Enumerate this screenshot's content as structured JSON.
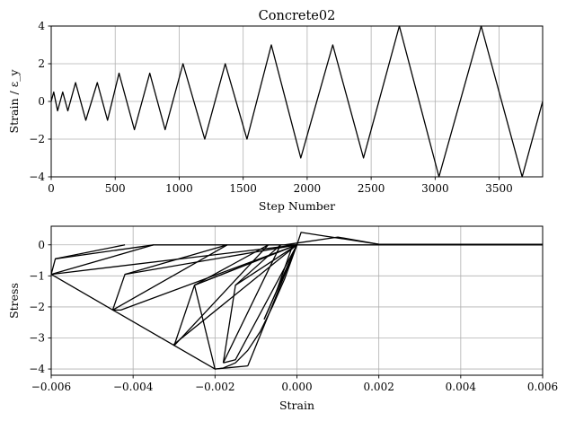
{
  "chart_data": [
    {
      "type": "line",
      "title": "Concrete02",
      "xlabel": "Step Number",
      "ylabel": "Strain / ε_y",
      "xlim": [
        0,
        3840
      ],
      "ylim": [
        -4,
        4
      ],
      "grid": true,
      "xticks": [
        0,
        500,
        1000,
        1500,
        2000,
        2500,
        3000,
        3500
      ],
      "yticks": [
        -4,
        -2,
        0,
        2,
        4
      ],
      "series": [
        {
          "x": [
            0,
            20,
            50,
            90,
            130,
            190,
            270,
            360,
            440,
            530,
            650,
            770,
            890,
            1030,
            1200,
            1360,
            1530,
            1720,
            1950,
            2200,
            2440,
            2720,
            3030,
            3360,
            3680,
            3840
          ],
          "y": [
            0,
            0.5,
            -0.5,
            0.5,
            -0.5,
            1.0,
            -1.0,
            1.0,
            -1.0,
            1.5,
            -1.5,
            1.5,
            -1.5,
            2.0,
            -2.0,
            2.0,
            -2.0,
            3.0,
            -3.0,
            3.0,
            -3.0,
            4.0,
            -4.0,
            4.0,
            -4.0,
            0
          ]
        }
      ]
    },
    {
      "type": "line",
      "title": "",
      "xlabel": "Strain",
      "ylabel": "Stress",
      "xlim": [
        -0.006,
        0.006
      ],
      "ylim": [
        -4.2,
        0.6
      ],
      "grid": true,
      "xticks": [
        -0.006,
        -0.004,
        -0.002,
        0.0,
        0.002,
        0.004,
        0.006
      ],
      "xticklabels": [
        "−0.006",
        "−0.004",
        "−0.002",
        "0.000",
        "0.002",
        "0.004",
        "0.006"
      ],
      "yticks": [
        -4,
        -3,
        -2,
        -1,
        0
      ],
      "envelope": {
        "x": [
          0,
          -0.0003,
          -0.0006,
          -0.0009,
          -0.0012,
          -0.0015,
          -0.0018,
          -0.002
        ],
        "y": [
          0,
          -1.1,
          -2.0,
          -2.8,
          -3.4,
          -3.8,
          -3.97,
          -4.0
        ]
      },
      "descending_branch": {
        "x": [
          -0.002,
          -0.006
        ],
        "y": [
          -4.0,
          -0.95
        ]
      },
      "tension_branch": {
        "x": [
          0,
          0.0001,
          0.0007,
          0.0015,
          0.002,
          0.006
        ],
        "y": [
          0,
          0.4,
          0.28,
          0.12,
          0.02,
          0.02
        ]
      },
      "cycles": [
        {
          "path": [
            [
              0.0,
              0.0
            ],
            [
              -0.00025,
              -0.75
            ],
            [
              -0.0004,
              -1.2
            ]
          ]
        },
        {
          "path": [
            [
              -0.0004,
              -1.2
            ],
            [
              0.0,
              0.0
            ]
          ]
        },
        {
          "path": [
            [
              0.0,
              0.0
            ],
            [
              -0.0006,
              -1.8
            ],
            [
              -0.0008,
              -2.4
            ]
          ]
        },
        {
          "path": [
            [
              -0.0008,
              -2.4
            ],
            [
              -0.0005,
              -1.5
            ],
            [
              0.0,
              0.0
            ]
          ]
        },
        {
          "path": [
            [
              0.0,
              0.0
            ],
            [
              -0.0015,
              -3.7
            ],
            [
              -0.0018,
              -3.8
            ]
          ]
        },
        {
          "path": [
            [
              -0.0018,
              -3.8
            ],
            [
              -0.0015,
              -1.3
            ],
            [
              0.0,
              0.0
            ],
            [
              -0.0012,
              -3.9
            ]
          ]
        },
        {
          "path": [
            [
              -0.0012,
              -3.9
            ],
            [
              -0.002,
              -4.0
            ],
            [
              -0.0025,
              -1.3
            ],
            [
              0.0,
              0.0
            ]
          ]
        },
        {
          "path": [
            [
              0.0,
              0.0
            ],
            [
              -0.003,
              -3.2
            ],
            [
              -0.003,
              -3.25
            ]
          ]
        },
        {
          "path": [
            [
              -0.003,
              -3.25
            ],
            [
              -0.0025,
              -1.3
            ],
            [
              0.0,
              0.0
            ]
          ]
        },
        {
          "path": [
            [
              0.0,
              0.0
            ],
            [
              -0.0043,
              -2.1
            ],
            [
              -0.0045,
              -2.1
            ]
          ]
        },
        {
          "path": [
            [
              -0.0045,
              -2.1
            ],
            [
              -0.0042,
              -0.95
            ],
            [
              0.0,
              0.0
            ]
          ]
        },
        {
          "path": [
            [
              0.0,
              0.0
            ],
            [
              -0.006,
              -0.95
            ]
          ]
        },
        {
          "path": [
            [
              -0.006,
              -0.95
            ],
            [
              -0.0059,
              -0.45
            ],
            [
              -0.0035,
              0.0
            ]
          ]
        },
        {
          "path": [
            [
              -0.0035,
              0.0
            ],
            [
              -0.006,
              -0.95
            ]
          ]
        },
        {
          "path": [
            [
              -0.0059,
              -0.45
            ],
            [
              -0.0042,
              0.0
            ]
          ]
        },
        {
          "path": [
            [
              -0.0042,
              -0.95
            ],
            [
              -0.0017,
              0.0
            ]
          ]
        },
        {
          "path": [
            [
              -0.0045,
              -2.1
            ],
            [
              -0.0017,
              0.0
            ]
          ]
        },
        {
          "path": [
            [
              -0.0025,
              -1.3
            ],
            [
              -0.0007,
              0.0
            ]
          ]
        },
        {
          "path": [
            [
              -0.003,
              -3.25
            ],
            [
              -0.0007,
              0.0
            ]
          ]
        },
        {
          "path": [
            [
              -0.0015,
              -1.3
            ],
            [
              -0.0004,
              0.0
            ]
          ]
        },
        {
          "path": [
            [
              -0.0018,
              -3.8
            ],
            [
              -0.0004,
              0.0
            ]
          ]
        },
        {
          "path": [
            [
              -0.0005,
              -1.5
            ],
            [
              -0.0001,
              0.0
            ]
          ]
        },
        {
          "path": [
            [
              -0.0003,
              0.0
            ],
            [
              0.001,
              0.25
            ],
            [
              0.002,
              0.02
            ]
          ]
        },
        {
          "path": [
            [
              -0.0035,
              0.0
            ],
            [
              0.006,
              0.0
            ]
          ]
        }
      ]
    }
  ]
}
